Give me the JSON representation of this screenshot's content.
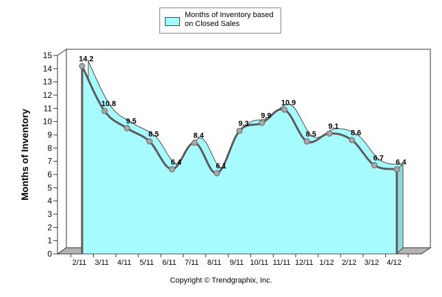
{
  "chart_data": {
    "type": "area",
    "title": "",
    "xlabel": "",
    "ylabel": "Months of Inventory",
    "categories": [
      "2/11",
      "3/11",
      "4/11",
      "5/11",
      "6/11",
      "7/11",
      "8/11",
      "9/11",
      "10/11",
      "11/11",
      "12/11",
      "1/12",
      "2/12",
      "3/12",
      "4/12"
    ],
    "series": [
      {
        "name": "Months of Inventory based on Closed Sales",
        "values": [
          14.2,
          10.8,
          9.5,
          8.5,
          6.4,
          8.4,
          6.1,
          9.3,
          9.9,
          10.9,
          8.5,
          9.1,
          8.6,
          6.7,
          6.4
        ],
        "labels": [
          "14.2",
          "10.8",
          "9.5",
          "8.5",
          "6.4",
          "8.4",
          "6.1",
          "9.3",
          "9.9",
          "10.9",
          "8.5",
          "9.1",
          "8.6",
          "6.7",
          "6.4"
        ]
      }
    ],
    "yticks": [
      "0",
      "1",
      "2",
      "3",
      "4",
      "5",
      "6",
      "7",
      "8",
      "9",
      "10",
      "11",
      "12",
      "13",
      "14",
      "15"
    ],
    "ylim": [
      0,
      15
    ],
    "grid": false,
    "legend_position": "top-center",
    "colors": {
      "fill": "#a6fbff",
      "line": "#5a5a5a",
      "marker": "#a8a8a8",
      "wall": "#ffffff",
      "floor": "#b4b4b4"
    }
  },
  "legend": {
    "label": "Months of Inventory based on Closed Sales"
  },
  "footer": {
    "copyright": "Copyright © Trendgraphix, Inc."
  }
}
